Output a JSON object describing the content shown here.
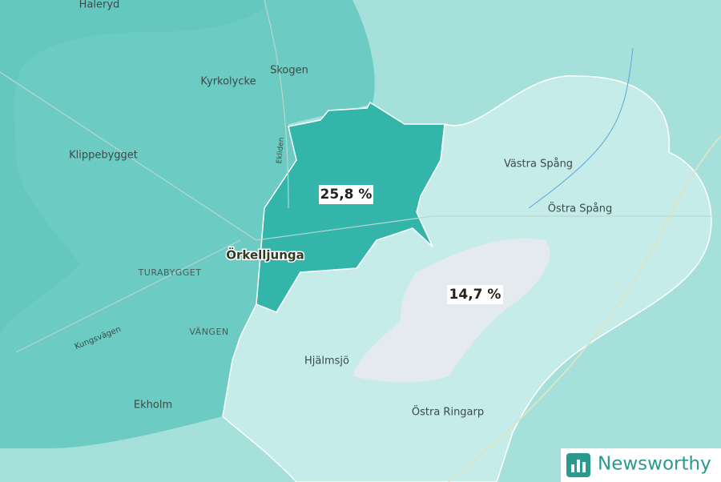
{
  "places": [
    {
      "name": "Haleryd"
    },
    {
      "name": "Skogen"
    },
    {
      "name": "Kyrkolycke"
    },
    {
      "name": "Klippebygget"
    },
    {
      "name": "Ekliden"
    },
    {
      "name": "Västra Spång"
    },
    {
      "name": "Östra Spång"
    },
    {
      "name": "Örkelljunga"
    },
    {
      "name": "TURABYGGET"
    },
    {
      "name": "VÄNGEN"
    },
    {
      "name": "Kungsvägen"
    },
    {
      "name": "Hjälmsjö"
    },
    {
      "name": "Ekholm"
    },
    {
      "name": "Östra Ringarp"
    }
  ],
  "regions": [
    {
      "value": 25.8,
      "value_label": "25,8 %",
      "color": "#33b5aa"
    },
    {
      "value": 14.7,
      "value_label": "14,7 %",
      "color": "#c6ecea"
    }
  ],
  "logo": {
    "text": "Newsworthy"
  }
}
